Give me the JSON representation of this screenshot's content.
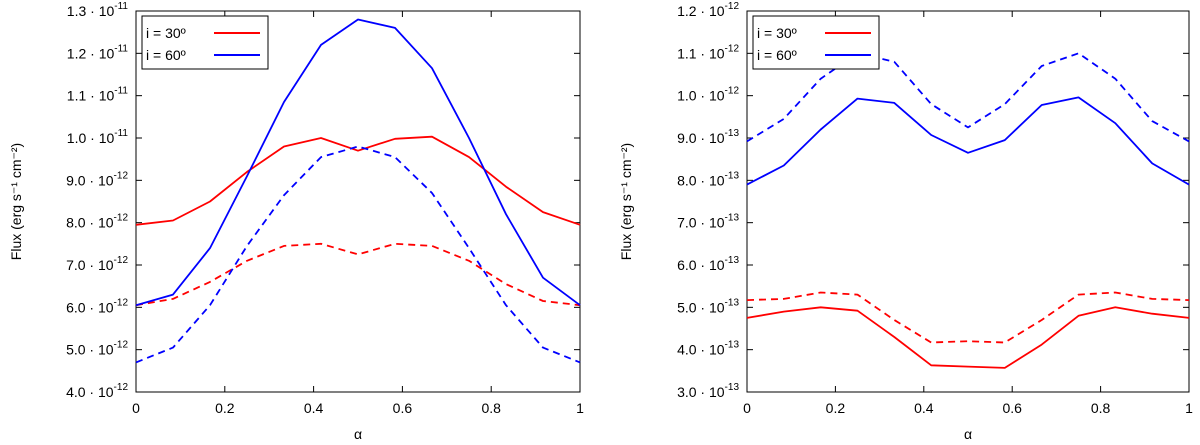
{
  "chart_data": [
    {
      "type": "line",
      "xlabel": "α",
      "ylabel": "Flux (erg s⁻¹ cm⁻²)",
      "xlim": [
        0,
        1
      ],
      "ylim": [
        4e-12,
        1.3e-11
      ],
      "x_ticks": [
        {
          "value": 0,
          "label": "0"
        },
        {
          "value": 0.2,
          "label": "0.2"
        },
        {
          "value": 0.4,
          "label": "0.4"
        },
        {
          "value": 0.6,
          "label": "0.6"
        },
        {
          "value": 0.8,
          "label": "0.8"
        },
        {
          "value": 1,
          "label": "1"
        }
      ],
      "y_ticks": [
        {
          "value": 4e-12,
          "mantissa": "4.0 · 10",
          "exp": "-12"
        },
        {
          "value": 5e-12,
          "mantissa": "5.0 · 10",
          "exp": "-12"
        },
        {
          "value": 6e-12,
          "mantissa": "6.0 · 10",
          "exp": "-12"
        },
        {
          "value": 7e-12,
          "mantissa": "7.0 · 10",
          "exp": "-12"
        },
        {
          "value": 8e-12,
          "mantissa": "8.0 · 10",
          "exp": "-12"
        },
        {
          "value": 9e-12,
          "mantissa": "9.0 · 10",
          "exp": "-12"
        },
        {
          "value": 1e-11,
          "mantissa": "1.0 · 10",
          "exp": "-11"
        },
        {
          "value": 1.1e-11,
          "mantissa": "1.1 · 10",
          "exp": "-11"
        },
        {
          "value": 1.2e-11,
          "mantissa": "1.2 · 10",
          "exp": "-11"
        },
        {
          "value": 1.3e-11,
          "mantissa": "1.3 · 10",
          "exp": "-11"
        }
      ],
      "legend": [
        {
          "label": "i = 30º",
          "color": "#ff0000"
        },
        {
          "label": "i = 60º",
          "color": "#0000ff"
        }
      ],
      "x": [
        0,
        0.0833,
        0.1667,
        0.25,
        0.3333,
        0.4167,
        0.5,
        0.5833,
        0.6667,
        0.75,
        0.8333,
        0.9167,
        1.0
      ],
      "series": [
        {
          "name": "i = 30º solid",
          "color": "#ff0000",
          "dashed": false,
          "values": [
            7.95e-12,
            8.05e-12,
            8.5e-12,
            9.2e-12,
            9.8e-12,
            1e-11,
            9.7e-12,
            9.98e-12,
            1.003e-11,
            9.55e-12,
            8.85e-12,
            8.25e-12,
            7.95e-12
          ]
        },
        {
          "name": "i = 30º dashed",
          "color": "#ff0000",
          "dashed": true,
          "values": [
            6.05e-12,
            6.2e-12,
            6.6e-12,
            7.1e-12,
            7.45e-12,
            7.5e-12,
            7.25e-12,
            7.5e-12,
            7.45e-12,
            7.1e-12,
            6.55e-12,
            6.15e-12,
            6.05e-12
          ]
        },
        {
          "name": "i = 60º solid",
          "color": "#0000ff",
          "dashed": false,
          "values": [
            6.05e-12,
            6.3e-12,
            7.4e-12,
            9.1e-12,
            1.085e-11,
            1.22e-11,
            1.28e-11,
            1.26e-11,
            1.165e-11,
            1e-11,
            8.2e-12,
            6.7e-12,
            6.05e-12
          ]
        },
        {
          "name": "i = 60º dashed",
          "color": "#0000ff",
          "dashed": true,
          "values": [
            4.7e-12,
            5.05e-12,
            6.05e-12,
            7.45e-12,
            8.65e-12,
            9.55e-12,
            9.8e-12,
            9.55e-12,
            8.7e-12,
            7.4e-12,
            6.05e-12,
            5.05e-12,
            4.7e-12
          ]
        }
      ]
    },
    {
      "type": "line",
      "xlabel": "α",
      "ylabel": "Flux (erg s⁻¹ cm⁻²)",
      "xlim": [
        0,
        1
      ],
      "ylim": [
        3e-13,
        1.2e-12
      ],
      "x_ticks": [
        {
          "value": 0,
          "label": "0"
        },
        {
          "value": 0.2,
          "label": "0.2"
        },
        {
          "value": 0.4,
          "label": "0.4"
        },
        {
          "value": 0.6,
          "label": "0.6"
        },
        {
          "value": 0.8,
          "label": "0.8"
        },
        {
          "value": 1,
          "label": "1"
        }
      ],
      "y_ticks": [
        {
          "value": 3e-13,
          "mantissa": "3.0 · 10",
          "exp": "-13"
        },
        {
          "value": 4e-13,
          "mantissa": "4.0 · 10",
          "exp": "-13"
        },
        {
          "value": 5e-13,
          "mantissa": "5.0 · 10",
          "exp": "-13"
        },
        {
          "value": 6e-13,
          "mantissa": "6.0 · 10",
          "exp": "-13"
        },
        {
          "value": 7e-13,
          "mantissa": "7.0 · 10",
          "exp": "-13"
        },
        {
          "value": 8e-13,
          "mantissa": "8.0 · 10",
          "exp": "-13"
        },
        {
          "value": 9e-13,
          "mantissa": "9.0 · 10",
          "exp": "-13"
        },
        {
          "value": 1e-12,
          "mantissa": "1.0 · 10",
          "exp": "-12"
        },
        {
          "value": 1.1e-12,
          "mantissa": "1.1 · 10",
          "exp": "-12"
        },
        {
          "value": 1.2e-12,
          "mantissa": "1.2 · 10",
          "exp": "-12"
        }
      ],
      "legend": [
        {
          "label": "i = 30º",
          "color": "#ff0000"
        },
        {
          "label": "i = 60º",
          "color": "#0000ff"
        }
      ],
      "x": [
        0,
        0.0833,
        0.1667,
        0.25,
        0.3333,
        0.4167,
        0.5,
        0.5833,
        0.6667,
        0.75,
        0.8333,
        0.9167,
        1.0
      ],
      "series": [
        {
          "name": "i = 30º solid",
          "color": "#ff0000",
          "dashed": false,
          "values": [
            4.75e-13,
            4.9e-13,
            5e-13,
            4.92e-13,
            4.3e-13,
            3.63e-13,
            3.6e-13,
            3.57e-13,
            4.12e-13,
            4.8e-13,
            5e-13,
            4.85e-13,
            4.75e-13
          ]
        },
        {
          "name": "i = 30º dashed",
          "color": "#ff0000",
          "dashed": true,
          "values": [
            5.17e-13,
            5.2e-13,
            5.35e-13,
            5.3e-13,
            4.7e-13,
            4.17e-13,
            4.2e-13,
            4.17e-13,
            4.7e-13,
            5.3e-13,
            5.35e-13,
            5.2e-13,
            5.17e-13
          ]
        },
        {
          "name": "i = 60º solid",
          "color": "#0000ff",
          "dashed": false,
          "values": [
            7.9e-13,
            8.35e-13,
            9.2e-13,
            9.93e-13,
            9.83e-13,
            9.07e-13,
            8.65e-13,
            8.95e-13,
            9.78e-13,
            9.96e-13,
            9.35e-13,
            8.4e-13,
            7.9e-13
          ]
        },
        {
          "name": "i = 60º dashed",
          "color": "#0000ff",
          "dashed": true,
          "values": [
            8.92e-13,
            9.45e-13,
            1.04e-12,
            1.1e-12,
            1.08e-12,
            9.8e-13,
            9.25e-13,
            9.8e-13,
            1.07e-12,
            1.1e-12,
            1.04e-12,
            9.4e-13,
            8.92e-13
          ]
        }
      ]
    }
  ]
}
